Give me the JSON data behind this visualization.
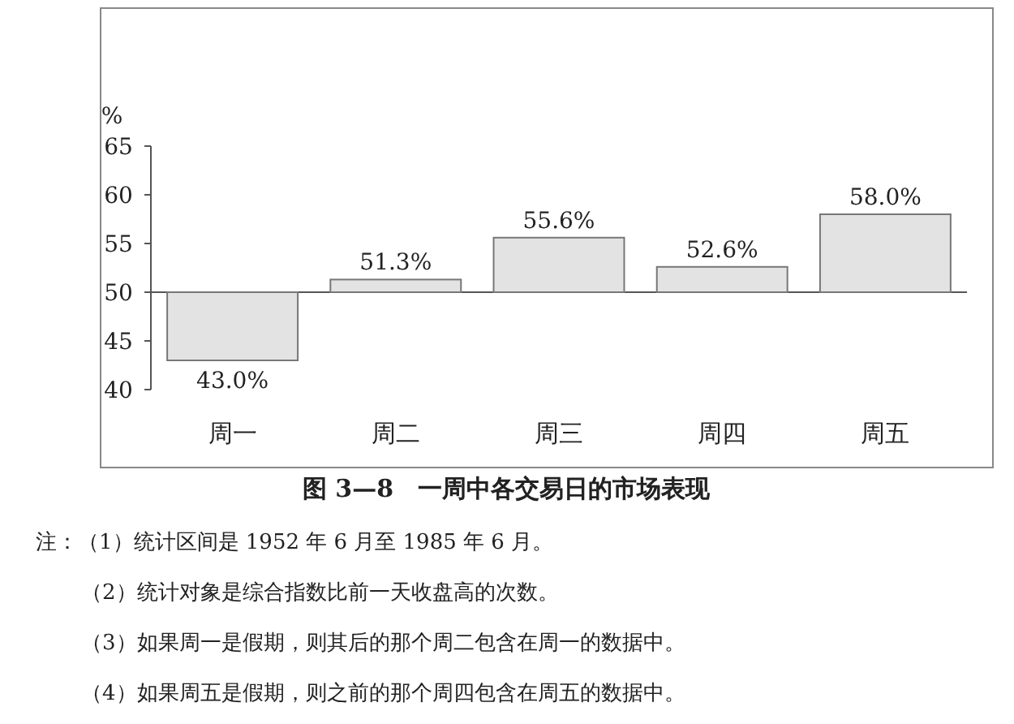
{
  "chart_data": {
    "type": "bar",
    "title": "图 3—8　一周中各交易日的市场表现",
    "ylabel": "%",
    "categories": [
      "周一",
      "周二",
      "周三",
      "周四",
      "周五"
    ],
    "base": [
      50,
      50,
      50,
      50,
      50
    ],
    "values": [
      -7.0,
      1.3,
      5.6,
      2.6,
      8.0
    ],
    "value_labels": [
      "43.0%",
      "51.3%",
      "55.6%",
      "52.6%",
      "58.0%"
    ],
    "color": "#e3e3e3",
    "ylim": [
      40,
      65
    ],
    "yticks": [
      40,
      45,
      50,
      55,
      60,
      65
    ],
    "annotations": [
      "注：（1）统计区间是 1952 年 6 月至 1985 年 6 月。",
      "（2）统计对象是综合指数比前一天收盘高的次数。",
      "（3）如果周一是假期，则其后的那个周二包含在周一的数据中。",
      "（4）如果周五是假期，则之前的那个周四包含在周五的数据中。"
    ]
  }
}
